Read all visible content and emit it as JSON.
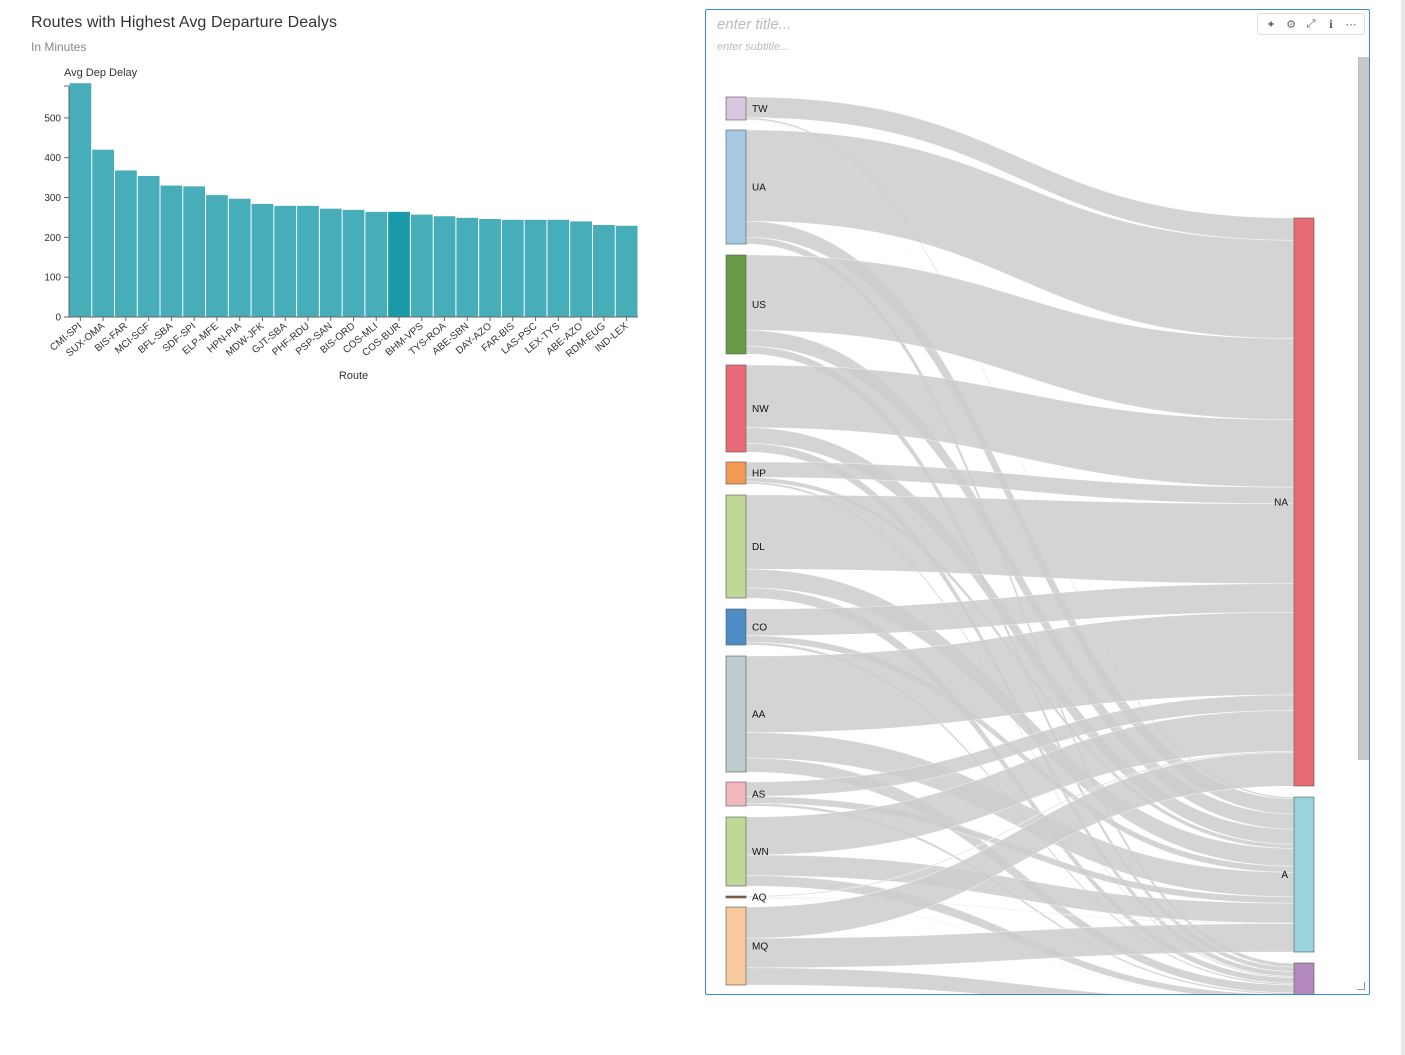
{
  "bar_chart": {
    "title": "Routes with Highest Avg Departure Dealys",
    "subtitle": "In Minutes"
  },
  "sankey": {
    "title_placeholder": "enter title...",
    "subtitle_placeholder": "enter subtitle...",
    "toolbar": [
      {
        "name": "sparkle-icon",
        "glyph": "✦"
      },
      {
        "name": "gear-icon",
        "glyph": "⚙"
      },
      {
        "name": "expand-icon",
        "glyph": "⤢"
      },
      {
        "name": "info-icon",
        "glyph": "ℹ"
      },
      {
        "name": "more-icon",
        "glyph": "⋯"
      }
    ]
  },
  "chart_data": [
    {
      "type": "bar",
      "title": "Routes with Highest Avg Departure Dealys",
      "subtitle": "In Minutes",
      "xlabel": "Route",
      "ylabel": "Avg Dep Delay",
      "ylim": [
        0,
        580
      ],
      "yticks": [
        0,
        100,
        200,
        300,
        400,
        500
      ],
      "categories": [
        "CMI-SPI",
        "SUX-OMA",
        "BIS-FAR",
        "MCI-SGF",
        "BFL-SBA",
        "SDF-SPI",
        "ELP-MFE",
        "HPN-PIA",
        "MDW-JFK",
        "GJT-SBA",
        "PHF-RDU",
        "PSP-SAN",
        "BIS-ORD",
        "COS-MLI",
        "COS-BUR",
        "BHM-VPS",
        "TYS-ROA",
        "ABE-SBN",
        "DAY-AZO",
        "FAR-BIS",
        "LAS-PSC",
        "LEX-TYS",
        "ABE-AZO",
        "RDM-EUG",
        "IND-LEX"
      ],
      "values": [
        587,
        420,
        368,
        354,
        330,
        328,
        306,
        297,
        284,
        279,
        279,
        272,
        269,
        264,
        264,
        257,
        253,
        249,
        246,
        244,
        244,
        244,
        240,
        231,
        229
      ],
      "highlighted": "COS-BUR",
      "color": "#46adb9",
      "highlight_color": "#1a9aa8"
    },
    {
      "type": "sankey",
      "sources": [
        {
          "name": "TW",
          "color": "#d9c5de"
        },
        {
          "name": "UA",
          "color": "#a6c8e2"
        },
        {
          "name": "US",
          "color": "#6a9a47"
        },
        {
          "name": "NW",
          "color": "#e96b77"
        },
        {
          "name": "HP",
          "color": "#f09a55"
        },
        {
          "name": "DL",
          "color": "#c0d795"
        },
        {
          "name": "CO",
          "color": "#4e8cc6"
        },
        {
          "name": "AA",
          "color": "#c0cbd0"
        },
        {
          "name": "AS",
          "color": "#f2b8be"
        },
        {
          "name": "WN",
          "color": "#c0d795"
        },
        {
          "name": "AQ",
          "color": "#8a6040"
        },
        {
          "name": "MQ",
          "color": "#f7c99b"
        }
      ],
      "targets": [
        {
          "name": "NA",
          "color": "#e96b77"
        },
        {
          "name": "A",
          "color": "#99d3db"
        },
        {
          "name": "",
          "color": "#b489c0"
        }
      ],
      "link_color": "#cccccc"
    }
  ]
}
